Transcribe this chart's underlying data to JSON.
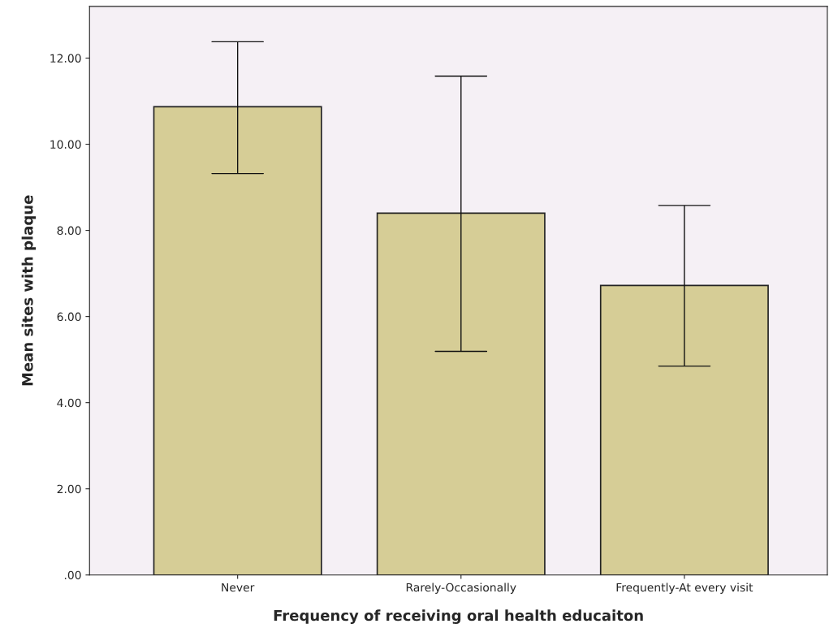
{
  "chart_data": {
    "type": "bar",
    "xlabel": "Frequency of receiving oral health educaiton",
    "ylabel": "Mean sites with plaque",
    "categories": [
      "Never",
      "Rarely-Occasionally",
      "Frequently-At every visit"
    ],
    "values": [
      10.87,
      8.4,
      6.72
    ],
    "errors": [
      [
        9.32,
        12.38
      ],
      [
        5.19,
        11.58
      ],
      [
        4.85,
        8.58
      ]
    ],
    "color": "#d6cd96",
    "ylim": [
      0,
      13.2
    ],
    "yticks": [
      {
        "value": 0,
        "label": ".00"
      },
      {
        "value": 2,
        "label": "2.00"
      },
      {
        "value": 4,
        "label": "4.00"
      },
      {
        "value": 6,
        "label": "6.00"
      },
      {
        "value": 8,
        "label": "8.00"
      },
      {
        "value": 10,
        "label": "10.00"
      },
      {
        "value": 12,
        "label": "12.00"
      }
    ],
    "grid": false,
    "legend": false
  }
}
